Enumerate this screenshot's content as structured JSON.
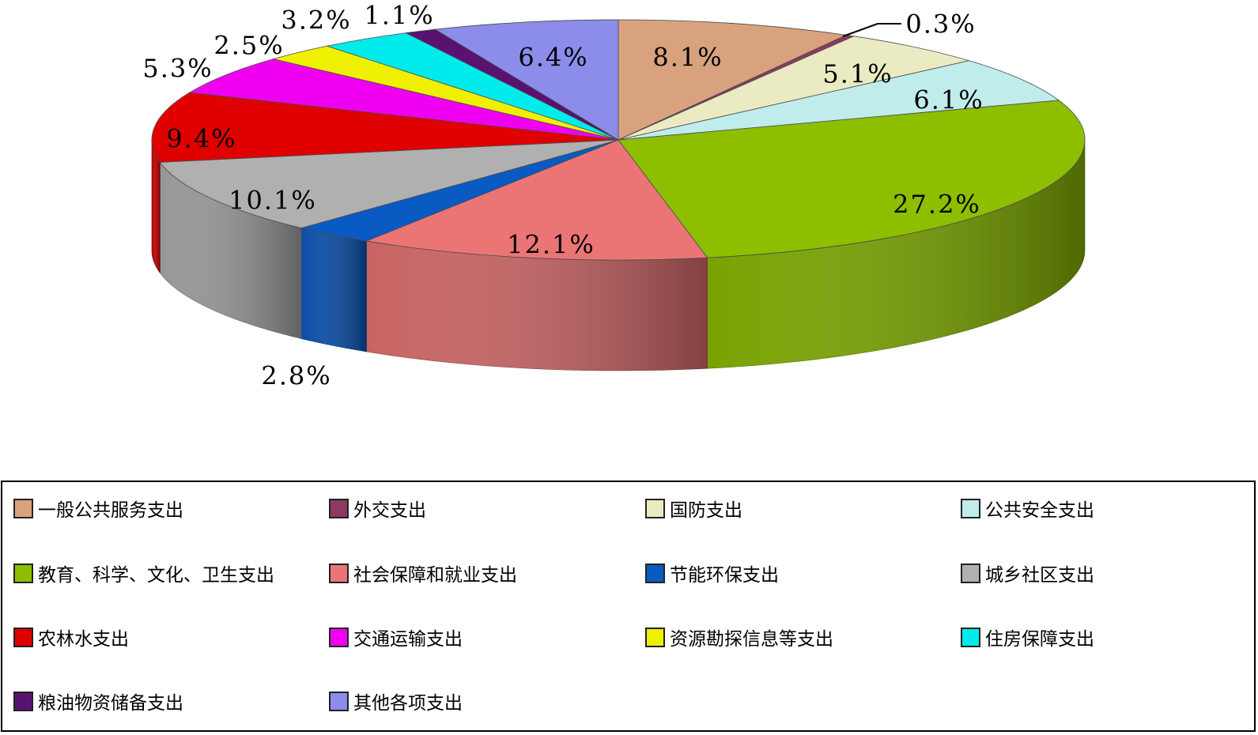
{
  "chart_data": {
    "type": "pie",
    "title": "",
    "series": [
      {
        "name": "一般公共服务支出",
        "value": 8.1,
        "label": "8.1%",
        "color": "#D9A27E"
      },
      {
        "name": "外交支出",
        "value": 0.3,
        "label": "0.3%",
        "color": "#8B3A62"
      },
      {
        "name": "国防支出",
        "value": 5.1,
        "label": "5.1%",
        "color": "#EBEBC3"
      },
      {
        "name": "公共安全支出",
        "value": 6.1,
        "label": "6.1%",
        "color": "#C0ECEC"
      },
      {
        "name": "教育、科学、文化、卫生支出",
        "value": 27.2,
        "label": "27.2%",
        "color": "#8DBE00"
      },
      {
        "name": "社会保障和就业支出",
        "value": 12.1,
        "label": "12.1%",
        "color": "#EB7575"
      },
      {
        "name": "节能环保支出",
        "value": 2.8,
        "label": "2.8%",
        "color": "#0A5AC4"
      },
      {
        "name": "城乡社区支出",
        "value": 10.1,
        "label": "10.1%",
        "color": "#B0B0B0"
      },
      {
        "name": "农林水支出",
        "value": 9.4,
        "label": "9.4%",
        "color": "#E00000"
      },
      {
        "name": "交通运输支出",
        "value": 5.3,
        "label": "5.3%",
        "color": "#F000F0"
      },
      {
        "name": "资源勘探信息等支出",
        "value": 2.5,
        "label": "2.5%",
        "color": "#EFEF00"
      },
      {
        "name": "住房保障支出",
        "value": 3.2,
        "label": "3.2%",
        "color": "#00EBEB"
      },
      {
        "name": "粮油物资储备支出",
        "value": 1.1,
        "label": "1.1%",
        "color": "#5A1270"
      },
      {
        "name": "其他各项支出",
        "value": 6.4,
        "label": "6.4%",
        "color": "#8C8CEB"
      }
    ],
    "style": "3d-exploded-pie",
    "legend_position": "bottom",
    "legend_columns": 4
  },
  "legend": {
    "items": [
      {
        "label": "一般公共服务支出",
        "color": "#D9A27E"
      },
      {
        "label": "外交支出",
        "color": "#8B3A62"
      },
      {
        "label": "国防支出",
        "color": "#EBEBC3"
      },
      {
        "label": "公共安全支出",
        "color": "#C0ECEC"
      },
      {
        "label": "教育、科学、文化、卫生支出",
        "color": "#8DBE00"
      },
      {
        "label": "社会保障和就业支出",
        "color": "#EB7575"
      },
      {
        "label": "节能环保支出",
        "color": "#0A5AC4"
      },
      {
        "label": "城乡社区支出",
        "color": "#B0B0B0"
      },
      {
        "label": "农林水支出",
        "color": "#E00000"
      },
      {
        "label": "交通运输支出",
        "color": "#F000F0"
      },
      {
        "label": "资源勘探信息等支出",
        "color": "#EFEF00"
      },
      {
        "label": "住房保障支出",
        "color": "#00EBEB"
      },
      {
        "label": "粮油物资储备支出",
        "color": "#5A1270"
      },
      {
        "label": "其他各项支出",
        "color": "#8C8CEB"
      }
    ]
  }
}
